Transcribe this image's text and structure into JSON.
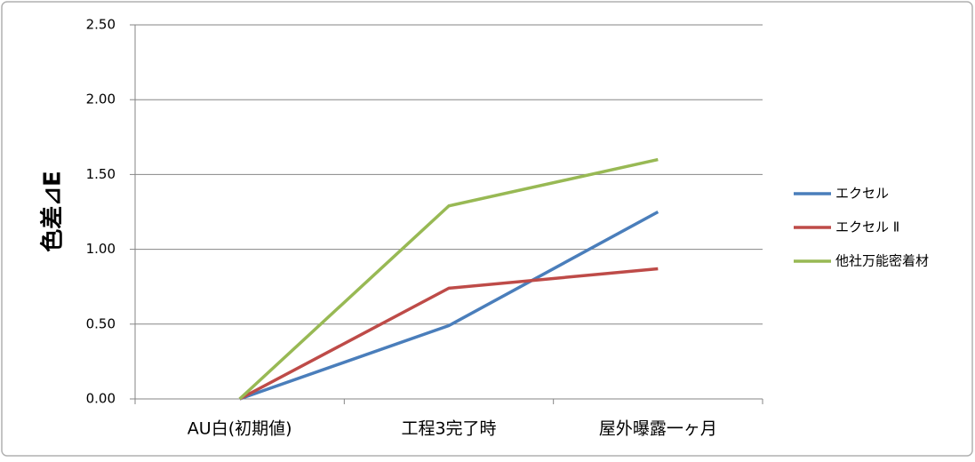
{
  "chart_data": {
    "type": "line",
    "y_label": "色差⊿E",
    "categories": [
      "AU白(初期値)",
      "工程3完了時",
      "屋外曝露一ヶ月"
    ],
    "series": [
      {
        "name": "エクセル",
        "color": "#4a7ebb",
        "values": [
          0,
          0.49,
          1.25
        ]
      },
      {
        "name": "エクセル Ⅱ",
        "color": "#be4b48",
        "values": [
          0,
          0.74,
          0.87
        ]
      },
      {
        "name": "他社万能密着材",
        "color": "#98b954",
        "values": [
          0,
          1.29,
          1.6
        ]
      }
    ],
    "ylim": [
      0,
      2.5
    ],
    "yticks": [
      {
        "value": 0,
        "label": "0.00"
      },
      {
        "value": 0.5,
        "label": "0.50"
      },
      {
        "value": 1,
        "label": "1.00"
      },
      {
        "value": 1.5,
        "label": "1.50"
      },
      {
        "value": 2,
        "label": "2.00"
      },
      {
        "value": 2.5,
        "label": "2.50"
      }
    ],
    "grid": true,
    "legend": "right"
  }
}
